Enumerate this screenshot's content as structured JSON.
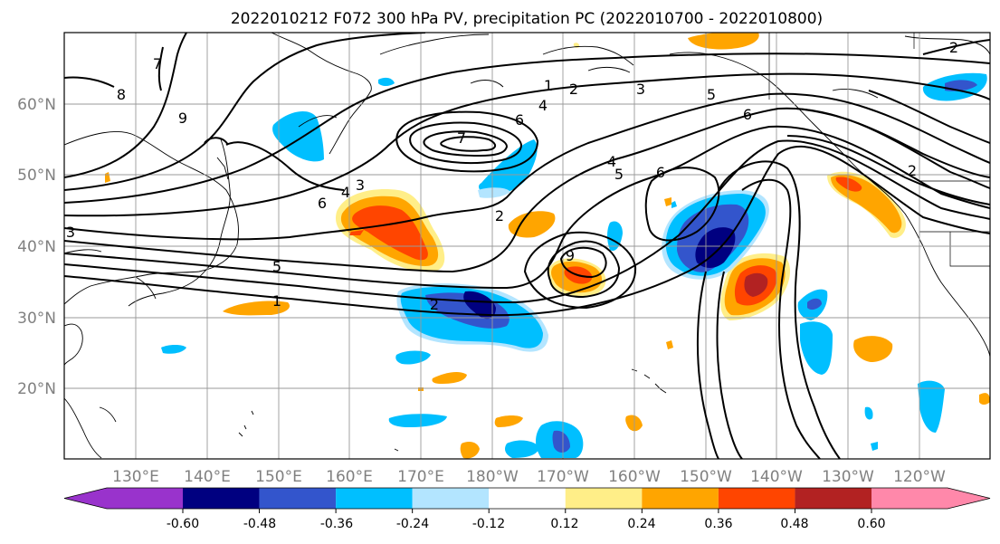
{
  "title": "2022010212 F072 300 hPa PV, precipitation PC (2022010700 - 2022010800)",
  "axes": {
    "lat_labels": [
      "60°N",
      "50°N",
      "40°N",
      "30°N",
      "20°N"
    ],
    "lon_labels": [
      "130°E",
      "140°E",
      "150°E",
      "160°E",
      "170°E",
      "180°W",
      "170°W",
      "160°W",
      "150°W",
      "140°W",
      "130°W",
      "120°W"
    ]
  },
  "colorbar": {
    "ticks": [
      "-0.60",
      "-0.48",
      "-0.36",
      "-0.24",
      "-0.12",
      "0.12",
      "0.24",
      "0.36",
      "0.48",
      "0.60"
    ],
    "colors": [
      "#9933cc",
      "#000080",
      "#3355cc",
      "#00bfff",
      "#b3e5ff",
      "#ffffff",
      "#ffee88",
      "#ffa500",
      "#ff4500",
      "#b22222",
      "#ff88aa"
    ]
  },
  "contour_labels": [
    "7",
    "8",
    "9",
    "3",
    "4",
    "6",
    "5",
    "1",
    "2",
    "1",
    "2",
    "3",
    "4",
    "5",
    "6",
    "7",
    "2",
    "4",
    "5",
    "6",
    "9",
    "2",
    "6",
    "2",
    "3"
  ],
  "colors": {
    "grid": "#999999",
    "coast": "#000000",
    "contour": "#000000",
    "tick_text": "#808080"
  }
}
